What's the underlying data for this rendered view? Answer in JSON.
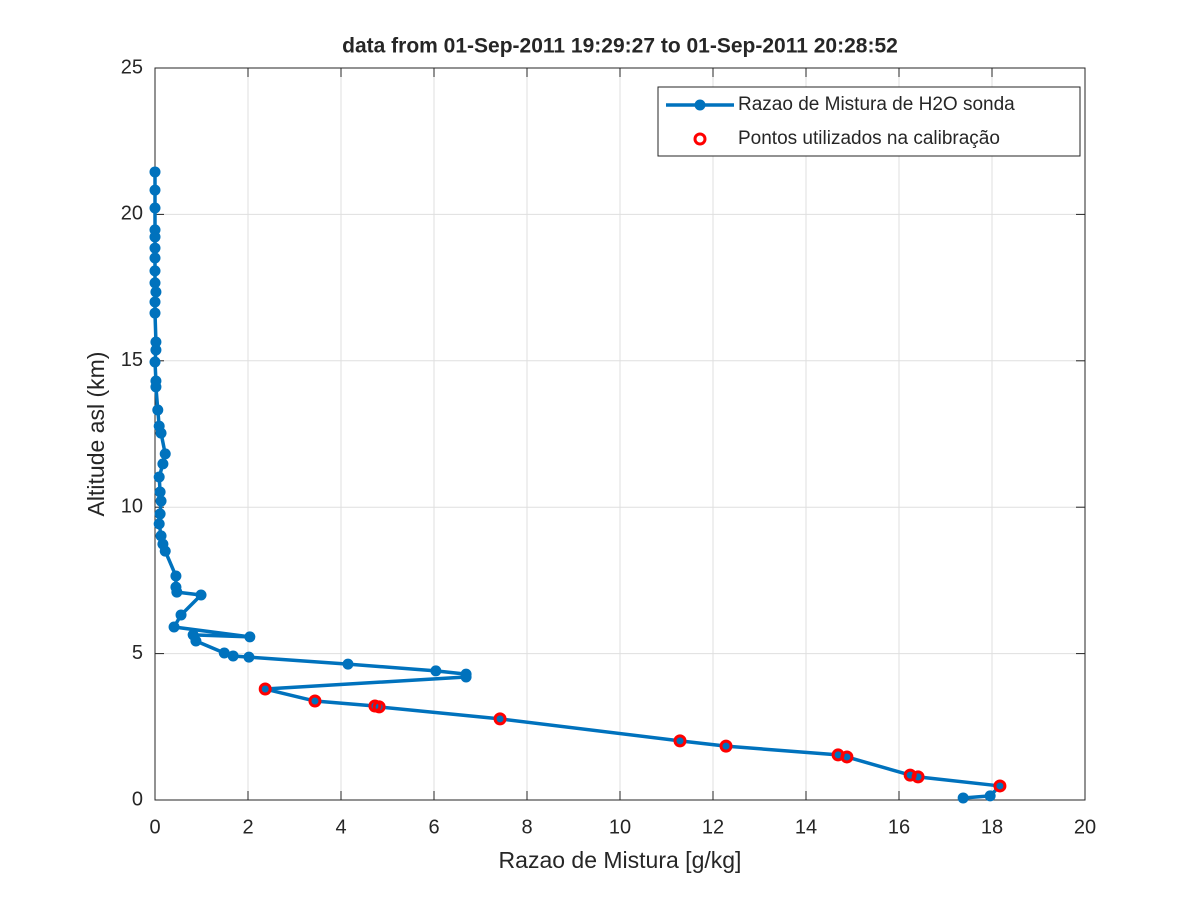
{
  "chart_data": {
    "type": "line",
    "title": "data from 01-Sep-2011 19:29:27 to 01-Sep-2011 20:28:52",
    "xlabel": "Razao de Mistura [g/kg]",
    "ylabel": "Altitude asl (km)",
    "xlim": [
      0,
      20
    ],
    "ylim": [
      0,
      25
    ],
    "xticks": [
      0,
      2,
      4,
      6,
      8,
      10,
      12,
      14,
      16,
      18,
      20
    ],
    "yticks": [
      0,
      5,
      10,
      15,
      20,
      25
    ],
    "grid": true,
    "legend": "upper right",
    "series": [
      {
        "name": "Razao de Mistura de H2O sonda",
        "color": "#0072bd",
        "line": true,
        "marker": "filled",
        "x": [
          17.38,
          17.96,
          18.17,
          16.41,
          16.24,
          14.88,
          14.69,
          12.28,
          11.29,
          7.42,
          4.82,
          4.73,
          3.44,
          2.37,
          6.69,
          6.69,
          6.04,
          4.15,
          2.02,
          1.68,
          1.49,
          0.88,
          0.82,
          2.04,
          0.41,
          0.56,
          0.99,
          0.47,
          0.45,
          0.45,
          0.22,
          0.17,
          0.13,
          0.09,
          0.11,
          0.13,
          0.11,
          0.09,
          0.17,
          0.22,
          0.13,
          0.09,
          0.06,
          0.02,
          0.02,
          0.0,
          0.02,
          0.02,
          0.0,
          0.0,
          0.02,
          0.0,
          0.0,
          0.0,
          0.0,
          0.0,
          0.0,
          0.0,
          0.0,
          0.0
        ],
        "values": [
          0.07,
          0.14,
          0.48,
          0.79,
          0.85,
          1.47,
          1.54,
          1.84,
          2.02,
          2.77,
          3.18,
          3.21,
          3.38,
          3.79,
          4.2,
          4.3,
          4.41,
          4.64,
          4.88,
          4.92,
          5.02,
          5.43,
          5.64,
          5.57,
          5.91,
          6.32,
          7.0,
          7.1,
          7.27,
          7.65,
          8.5,
          8.74,
          9.02,
          9.43,
          9.77,
          10.21,
          10.52,
          11.03,
          11.48,
          11.82,
          12.53,
          12.77,
          13.32,
          14.11,
          14.31,
          14.96,
          15.37,
          15.64,
          16.63,
          17.01,
          17.35,
          17.66,
          18.07,
          18.51,
          18.85,
          19.23,
          19.47,
          20.22,
          20.83,
          21.45
        ]
      },
      {
        "name": "Pontos utilizados na calibração",
        "color": "#ff0000",
        "line": false,
        "marker": "open",
        "x": [
          2.37,
          3.44,
          4.73,
          4.82,
          7.42,
          11.29,
          12.28,
          14.69,
          14.88,
          16.24,
          16.41,
          18.17
        ],
        "values": [
          3.79,
          3.38,
          3.21,
          3.18,
          2.77,
          2.02,
          1.84,
          1.54,
          1.47,
          0.85,
          0.79,
          0.48
        ]
      }
    ]
  }
}
